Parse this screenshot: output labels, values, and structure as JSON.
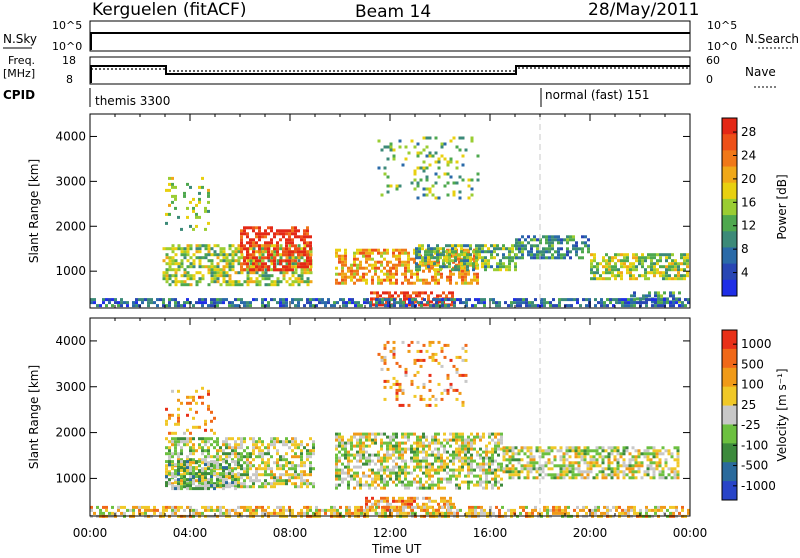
{
  "header": {
    "station": "Kerguelen (fitACF)",
    "beam": "Beam 14",
    "date": "28/May/2011"
  },
  "strip_labels": {
    "nsky": "N.Sky",
    "nsky_ticks": [
      "10^5",
      "10^0"
    ],
    "nsearch": "N.Search",
    "nsearch_ticks": [
      "10^5",
      "10^0"
    ],
    "freq": "Freq.",
    "freq_unit": "[MHz]",
    "freq_ticks": [
      "18",
      "8"
    ],
    "nave": "Nave",
    "nave_ticks": [
      "60",
      "0"
    ],
    "cpid": "CPID"
  },
  "cpid_segments": [
    {
      "label": "themis 3300",
      "start_hour": 0
    },
    {
      "label": "normal (fast) 151",
      "start_hour": 18
    }
  ],
  "colors": {
    "frame": "#000000",
    "dashed_marker": "#c8c8c8",
    "ground_scatter": "#bebebe"
  },
  "chart_data": [
    {
      "type": "heatmap",
      "name_in_plot": "Power",
      "ylabel": "Slant Range [km]",
      "yticks": [
        1000,
        2000,
        3000,
        4000
      ],
      "ylim": [
        180,
        4500
      ],
      "xlim": [
        0,
        24
      ],
      "colorbar": {
        "label": "Power [dB]",
        "ticks": [
          "4",
          "8",
          "12",
          "16",
          "20",
          "24",
          "28"
        ],
        "colors": [
          "#1f2ee6",
          "#2846b4",
          "#2a6aa8",
          "#3c8a78",
          "#4ea84e",
          "#9acd32",
          "#e8d010",
          "#f0a818",
          "#f07818",
          "#ee5018",
          "#e42816"
        ]
      },
      "regions": [
        {
          "t0": 2.9,
          "t1": 8.9,
          "r0": 700,
          "r1": 1600,
          "level": 5
        },
        {
          "t0": 6.0,
          "t1": 8.8,
          "r0": 1000,
          "r1": 2000,
          "level": 10
        },
        {
          "t0": 3.0,
          "t1": 4.8,
          "r0": 1900,
          "r1": 3100,
          "level": 5
        },
        {
          "t0": 9.8,
          "t1": 15.5,
          "r0": 700,
          "r1": 1500,
          "level": 7
        },
        {
          "t0": 11.2,
          "t1": 14.5,
          "r0": 250,
          "r1": 550,
          "level": 10
        },
        {
          "t0": 13.0,
          "t1": 17.0,
          "r0": 1000,
          "r1": 1600,
          "level": 4
        },
        {
          "t0": 17.0,
          "t1": 20.0,
          "r0": 1300,
          "r1": 1800,
          "level": 3
        },
        {
          "t0": 20.0,
          "t1": 23.9,
          "r0": 850,
          "r1": 1400,
          "level": 5
        },
        {
          "t0": 21.6,
          "t1": 23.6,
          "r0": 300,
          "r1": 550,
          "level": 3
        },
        {
          "t0": 0.0,
          "t1": 24.0,
          "r0": 200,
          "r1": 400,
          "level": 2
        },
        {
          "t0": 11.5,
          "t1": 15.5,
          "r0": 2600,
          "r1": 4000,
          "level": 4
        }
      ]
    },
    {
      "type": "heatmap",
      "name_in_plot": "Velocity",
      "ylabel": "Slant Range [km]",
      "yticks": [
        1000,
        2000,
        3000,
        4000
      ],
      "ylim": [
        180,
        4500
      ],
      "xlim": [
        0,
        24
      ],
      "xticks": [
        "00:00",
        "04:00",
        "08:00",
        "12:00",
        "16:00",
        "20:00",
        "00:00"
      ],
      "xlabel": "Time UT",
      "colorbar": {
        "label": "Velocity [m s⁻¹]",
        "ticks": [
          "1000",
          "500",
          "100",
          "25",
          "-25",
          "-100",
          "-500",
          "-1000"
        ],
        "colors": [
          "#2844c8",
          "#2a6a9c",
          "#3c8a3c",
          "#6cc040",
          "#c8c8c8",
          "#f0c828",
          "#f09a18",
          "#f06818",
          "#e83018"
        ]
      },
      "regions": [
        {
          "t0": 3.0,
          "t1": 9.0,
          "r0": 800,
          "r1": 1900,
          "level": 4
        },
        {
          "t0": 9.8,
          "t1": 16.5,
          "r0": 800,
          "r1": 2000,
          "level": 4
        },
        {
          "t0": 16.5,
          "t1": 23.5,
          "r0": 1000,
          "r1": 1700,
          "level": 4
        },
        {
          "t0": 3.0,
          "t1": 5.0,
          "r0": 2000,
          "r1": 3000,
          "level": 6
        },
        {
          "t0": 11.0,
          "t1": 14.5,
          "r0": 250,
          "r1": 600,
          "level": 6
        },
        {
          "t0": 3.0,
          "t1": 6.0,
          "r0": 800,
          "r1": 1400,
          "level": 3
        },
        {
          "t0": 0.0,
          "t1": 24.0,
          "r0": 200,
          "r1": 400,
          "level": 5
        },
        {
          "t0": 11.5,
          "t1": 15.0,
          "r0": 2600,
          "r1": 4000,
          "level": 6
        }
      ]
    }
  ]
}
